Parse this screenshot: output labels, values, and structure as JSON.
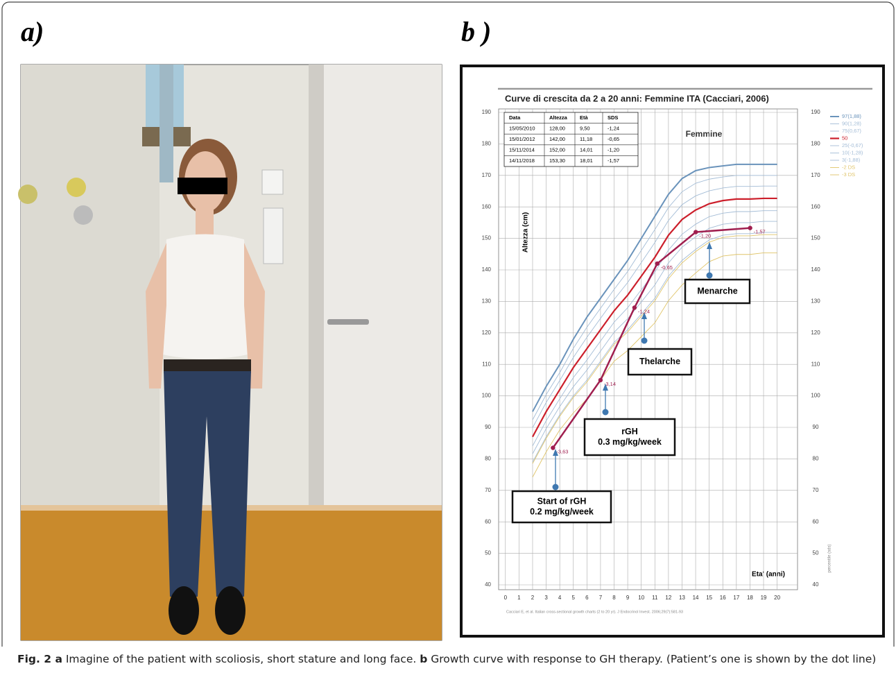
{
  "figure": {
    "panel_a_label": "a)",
    "panel_b_label": "b )",
    "caption": [
      "Fig. 2 a",
      " Imagine of the patient with scoliosis, short stature and long face. ",
      "b",
      " Growth curve with response to GH therapy. (Patient’s one is shown by the dot line)"
    ]
  },
  "chart_data": {
    "type": "line",
    "title": "Curve di crescita da 2 a 20 anni: Femmine ITA (Cacciari, 2006)",
    "subtitle": "Femmine",
    "ylabel": "Altezza (cm)",
    "xlabel": "Eta' (anni)",
    "y2label": "percentile (sds)",
    "source": "Cacciari E, et al. Italian cross-sectional growth charts (2 to 20 yr). J Endocrinol Invest. 2006;29(7):581-93",
    "xlim": [
      -0.5,
      21.5
    ],
    "ylim": [
      40,
      190
    ],
    "xticks": [
      0,
      1,
      2,
      3,
      4,
      5,
      6,
      7,
      8,
      9,
      10,
      11,
      12,
      13,
      14,
      15,
      16,
      17,
      18,
      19,
      20
    ],
    "yticks": [
      40,
      50,
      60,
      70,
      80,
      90,
      100,
      110,
      120,
      130,
      140,
      150,
      160,
      170,
      180,
      190
    ],
    "grid": true,
    "legend": "top-right",
    "x": [
      2,
      3,
      4,
      5,
      6,
      7,
      8,
      9,
      10,
      11,
      12,
      13,
      14,
      15,
      16,
      17,
      18,
      19,
      20
    ],
    "series": [
      {
        "name": "97(1,88)",
        "color": "#6a93bb",
        "width": 2,
        "values": [
          95,
          103,
          110,
          118,
          125,
          131,
          137,
          143,
          150,
          157,
          164,
          169,
          171.5,
          172.5,
          173,
          173.5,
          173.5,
          173.5,
          173.5
        ]
      },
      {
        "name": "90(1,28)",
        "color": "#a3bcd6",
        "width": 0.9,
        "values": [
          92.4,
          100.4,
          107.4,
          115.1,
          121.8,
          127.8,
          133.8,
          139.5,
          146.2,
          152.8,
          159.8,
          164.8,
          167.5,
          168.8,
          169.5,
          170.0,
          170.0,
          170.0,
          170.0
        ]
      },
      {
        "name": "75(0,67)",
        "color": "#a3bcd6",
        "width": 0.9,
        "values": [
          89.9,
          97.9,
          104.9,
          112.2,
          118.6,
          124.6,
          130.6,
          136.0,
          142.3,
          148.7,
          155.7,
          160.7,
          163.5,
          165.1,
          166.0,
          166.5,
          166.5,
          166.6,
          166.6
        ]
      },
      {
        "name": "50",
        "color": "#cc1f2b",
        "width": 2.2,
        "values": [
          87,
          95,
          102,
          109,
          115,
          121,
          127,
          132,
          138,
          144,
          151,
          156,
          159,
          161,
          162,
          162.5,
          162.5,
          162.7,
          162.7
        ]
      },
      {
        "name": "25(-0,67)",
        "color": "#a3bcd6",
        "width": 0.9,
        "values": [
          84.1,
          92.1,
          99.1,
          105.8,
          111.4,
          117.4,
          123.4,
          128.0,
          133.7,
          139.3,
          146.3,
          151.3,
          154.5,
          156.9,
          158.0,
          158.5,
          158.5,
          158.8,
          158.8
        ]
      },
      {
        "name": "10(-1,28)",
        "color": "#a3bcd6",
        "width": 0.9,
        "values": [
          81.6,
          89.6,
          96.6,
          102.9,
          108.2,
          114.2,
          120.2,
          124.5,
          129.8,
          135.2,
          142.2,
          147.2,
          150.5,
          153.2,
          154.5,
          155.0,
          155.0,
          155.4,
          155.4
        ]
      },
      {
        "name": "3(-1,88)",
        "color": "#a3bcd6",
        "width": 0.9,
        "values": [
          79,
          87,
          94,
          100,
          105,
          111,
          117,
          121,
          126,
          131,
          138,
          143,
          146.5,
          149.5,
          151,
          151.5,
          151.5,
          151.9,
          151.9
        ]
      },
      {
        "name": "-2 DS",
        "color": "#e0c468",
        "width": 0.9,
        "values": [
          78.5,
          86.5,
          93.5,
          99.5,
          104.4,
          110.4,
          116.4,
          120.3,
          125.3,
          130.2,
          137.2,
          142.2,
          145.8,
          148.8,
          150.3,
          150.8,
          150.8,
          151.2,
          151.2
        ]
      },
      {
        "name": "-3 DS",
        "color": "#e0c468",
        "width": 0.9,
        "values": [
          74.2,
          82.2,
          89.2,
          94.6,
          99.0,
          105.0,
          111.0,
          114.4,
          118.8,
          123.2,
          130.2,
          135.2,
          139.0,
          142.6,
          144.4,
          144.9,
          144.9,
          145.4,
          145.4
        ]
      }
    ],
    "patient": {
      "color": "#a01f4f",
      "x": [
        3.5,
        7,
        9.5,
        11.18,
        14.01,
        18.01
      ],
      "values": [
        83.5,
        105,
        128,
        142,
        152,
        153.3
      ],
      "labels": [
        "-3,63",
        "-3,14",
        "-1,24",
        "-0,65",
        "-1,20",
        "-1,57"
      ]
    },
    "table": {
      "header": [
        "Data",
        "Altezza",
        "Età",
        "SDS"
      ],
      "rows": [
        [
          "15/05/2010",
          "128,00",
          "9,50",
          "-1,24"
        ],
        [
          "15/01/2012",
          "142,00",
          "11,18",
          "-0,65"
        ],
        [
          "15/11/2014",
          "152,00",
          "14,01",
          "-1,20"
        ],
        [
          "14/11/2018",
          "153,30",
          "18,01",
          "-1,57"
        ]
      ]
    },
    "annotations": [
      {
        "lines": [
          "Start of  rGH",
          "0.2 mg/kg/week"
        ]
      },
      {
        "lines": [
          "rGH",
          "0.3 mg/kg/week"
        ]
      },
      {
        "lines": [
          "Thelarche"
        ]
      },
      {
        "lines": [
          "Menarche"
        ]
      }
    ]
  }
}
